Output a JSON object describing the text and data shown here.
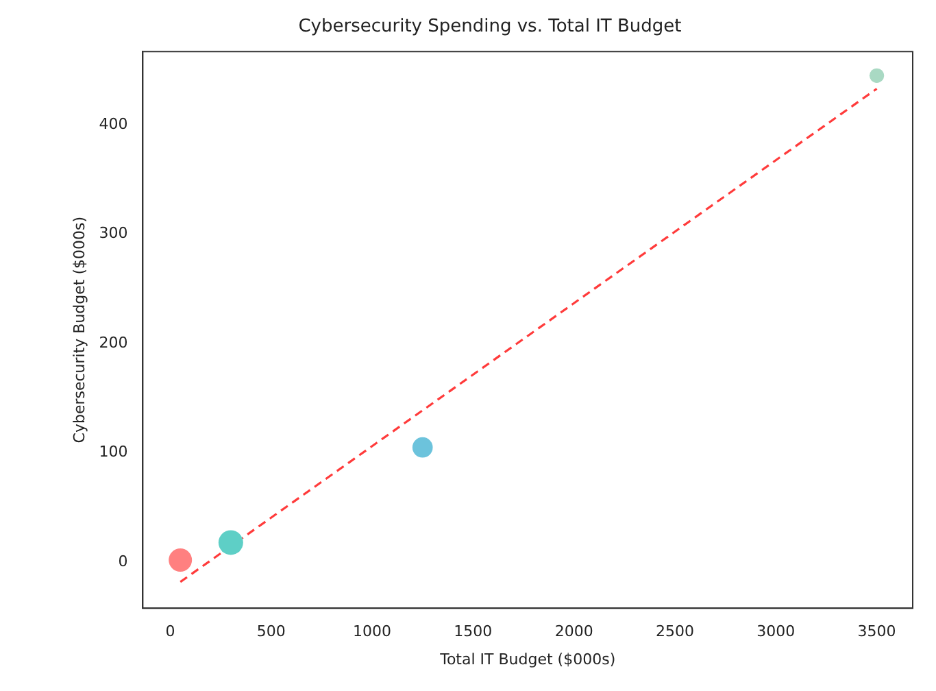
{
  "chart_data": {
    "type": "bubble",
    "title": "Cybersecurity Spending vs. Total IT Budget",
    "xlabel": "Total IT Budget ($000s)",
    "ylabel": "Cybersecurity Budget ($000s)",
    "xlim": [
      -136,
      3678
    ],
    "xticks": [
      0,
      500,
      1000,
      1500,
      2000,
      2500,
      3000,
      3500
    ],
    "ylim": [
      -42,
      467
    ],
    "yticks": [
      0,
      100,
      200,
      300,
      400
    ],
    "grid": false,
    "legend": false,
    "series": [
      {
        "x": [
          50,
          300,
          1250,
          3500
        ],
        "values": [
          2,
          18,
          105,
          445
        ],
        "sizes": [
          0.89,
          1,
          0.68,
          0.35
        ],
        "colors": [
          "#ff8080",
          "#5ecfc6",
          "#6cc3dc",
          "#a9d9c3"
        ]
      },
      {
        "type": "line",
        "x": [
          50,
          3500
        ],
        "values": [
          -18,
          433
        ],
        "color": "#ff3b3b",
        "line_style": "dashed",
        "marker": "none"
      }
    ]
  }
}
